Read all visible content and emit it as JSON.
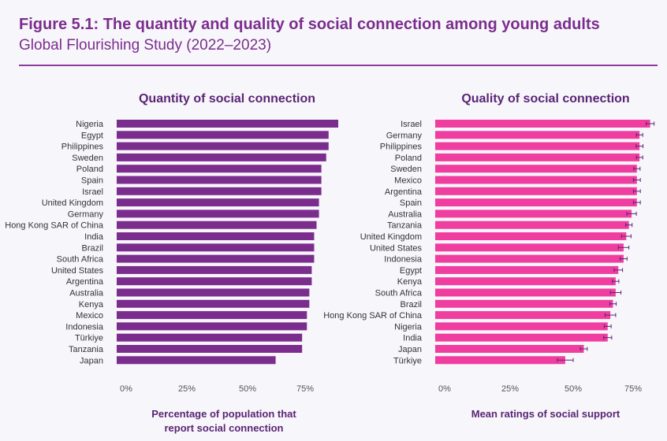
{
  "figure": {
    "title": "Figure 5.1: The quantity and quality of social connection among young adults",
    "subtitle": "Global Flourishing Study (2022–2023)"
  },
  "colors": {
    "quantity": "#7b2d8e",
    "quality": "#f03ea0",
    "title": "#7b2d8e",
    "error_bar": "#5a2575"
  },
  "chart_data": [
    {
      "type": "bar",
      "orientation": "horizontal",
      "title": "Quantity of social connection",
      "xlabel": [
        "Percentage of population that",
        "report social connection"
      ],
      "xticks": [
        "0%",
        "25%",
        "50%",
        "75%"
      ],
      "xlim": [
        0,
        92
      ],
      "categories": [
        "Nigeria",
        "Egypt",
        "Philippines",
        "Sweden",
        "Poland",
        "Spain",
        "Israel",
        "United Kingdom",
        "Germany",
        "Hong Kong SAR of China",
        "India",
        "Brazil",
        "South Africa",
        "United States",
        "Argentina",
        "Australia",
        "Kenya",
        "Mexico",
        "Indonesia",
        "Türkiye",
        "Tanzania",
        "Japan"
      ],
      "values": [
        92,
        88,
        88,
        87,
        85,
        85,
        85,
        84,
        84,
        83,
        82,
        82,
        82,
        81,
        81,
        80,
        80,
        79,
        79,
        77,
        77,
        66
      ],
      "value_unit": "percent"
    },
    {
      "type": "bar",
      "orientation": "horizontal",
      "title": "Quality of social connection",
      "xlabel": [
        "Mean ratings of social support"
      ],
      "xticks": [
        "0%",
        "25%",
        "50%",
        "75%"
      ],
      "xlim": [
        0,
        82
      ],
      "categories": [
        "Israel",
        "Germany",
        "Philippines",
        "Poland",
        "Sweden",
        "Mexico",
        "Argentina",
        "Spain",
        "Australia",
        "Tanzania",
        "United Kingdom",
        "United States",
        "Indonesia",
        "Egypt",
        "Kenya",
        "South Africa",
        "Brazil",
        "Hong Kong SAR of China",
        "Nigeria",
        "India",
        "Japan",
        "Türkiye"
      ],
      "values": [
        81,
        77,
        77,
        77,
        76,
        76,
        76,
        76,
        74,
        73,
        72,
        71,
        71,
        69,
        68,
        68,
        67,
        66,
        65,
        65,
        56,
        49
      ],
      "error": [
        1.5,
        1.2,
        1.3,
        1.2,
        1.2,
        1.3,
        1.3,
        1.3,
        1.8,
        1.2,
        1.8,
        2.0,
        1.3,
        1.6,
        1.2,
        2.0,
        1.2,
        2.0,
        1.3,
        1.5,
        1.3,
        3.0
      ],
      "value_unit": "mean rating (percent of scale)"
    }
  ]
}
